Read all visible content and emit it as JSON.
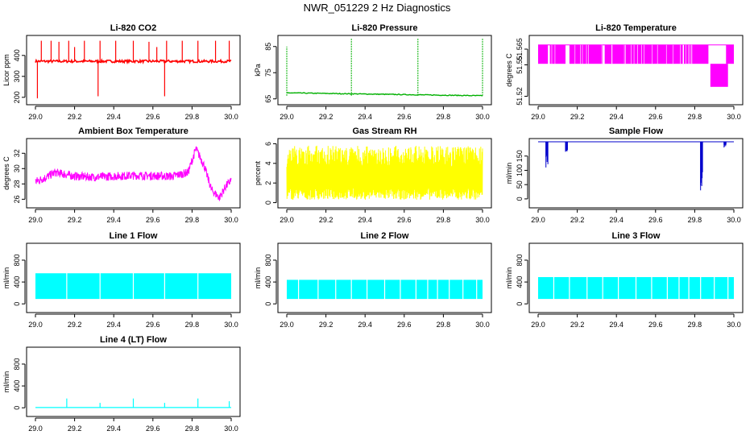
{
  "page": {
    "title": "NWR_051229  2 Hz Diagnostics"
  },
  "chart_data": [
    {
      "id": "co2",
      "type": "line",
      "title": "Li-820 CO2",
      "ylabel": "Licor ppm",
      "color": "#ff0000",
      "xlim": [
        29.0,
        30.0
      ],
      "x_ticks": [
        "29.0",
        "29.2",
        "29.4",
        "29.6",
        "29.8",
        "30.0"
      ],
      "ylim": [
        180,
        480
      ],
      "y_ticks": [
        {
          "v": 200,
          "label": "200"
        },
        {
          "v": 300,
          "label": "300"
        },
        {
          "v": 400,
          "label": "400"
        }
      ],
      "baseline": 372,
      "noise": 6,
      "spikes": [
        {
          "x": 29.01,
          "to": 195
        },
        {
          "x": 29.03,
          "to": 470
        },
        {
          "x": 29.08,
          "to": 470
        },
        {
          "x": 29.12,
          "to": 465
        },
        {
          "x": 29.17,
          "to": 470
        },
        {
          "x": 29.2,
          "to": 440
        },
        {
          "x": 29.25,
          "to": 470
        },
        {
          "x": 29.32,
          "to": 205
        },
        {
          "x": 29.33,
          "to": 470
        },
        {
          "x": 29.41,
          "to": 470
        },
        {
          "x": 29.5,
          "to": 470
        },
        {
          "x": 29.58,
          "to": 465
        },
        {
          "x": 29.62,
          "to": 440
        },
        {
          "x": 29.66,
          "to": 205
        },
        {
          "x": 29.67,
          "to": 470
        },
        {
          "x": 29.75,
          "to": 470
        },
        {
          "x": 29.83,
          "to": 470
        },
        {
          "x": 29.92,
          "to": 470
        },
        {
          "x": 29.99,
          "to": 470
        }
      ]
    },
    {
      "id": "pressure",
      "type": "line",
      "title": "Li-820 Pressure",
      "ylabel": "kPa",
      "color": "#00b000",
      "xlim": [
        29.0,
        30.0
      ],
      "x_ticks": [
        "29.0",
        "29.2",
        "29.4",
        "29.6",
        "29.8",
        "30.0"
      ],
      "ylim": [
        64,
        88
      ],
      "y_ticks": [
        {
          "v": 65,
          "label": "65"
        },
        {
          "v": 75,
          "label": "75"
        },
        {
          "v": 85,
          "label": "85"
        }
      ],
      "baseline_start": 67.3,
      "baseline_end": 66.2,
      "noise": 0.15,
      "spikes": [
        {
          "x": 29.0,
          "to": 85
        },
        {
          "x": 29.33,
          "to": 88
        },
        {
          "x": 29.67,
          "to": 88
        },
        {
          "x": 30.0,
          "to": 88
        }
      ]
    },
    {
      "id": "temperature",
      "type": "band",
      "title": "Li-820 Temperature",
      "ylabel": "degrees C",
      "color": "#ff00ff",
      "xlim": [
        29.0,
        30.0
      ],
      "x_ticks": [
        "29.0",
        "29.2",
        "29.4",
        "29.6",
        "29.8",
        "30.0"
      ],
      "ylim": [
        51.515,
        51.575
      ],
      "y_ticks": [
        {
          "v": 51.52,
          "label": "51.52"
        },
        {
          "v": 51.55,
          "label": "51.55"
        },
        {
          "v": 51.565,
          "label": "51.565"
        }
      ],
      "levels": [
        51.529,
        51.551,
        51.569
      ],
      "segments": [
        {
          "from": 29.0,
          "to": 29.05,
          "lo": 51.551,
          "hi": 51.569
        },
        {
          "from": 29.06,
          "to": 29.14,
          "lo": 51.551,
          "hi": 51.569
        },
        {
          "from": 29.16,
          "to": 29.33,
          "lo": 51.551,
          "hi": 51.569
        },
        {
          "from": 29.34,
          "to": 29.87,
          "lo": 51.551,
          "hi": 51.569
        },
        {
          "from": 29.88,
          "to": 29.97,
          "lo": 51.529,
          "hi": 51.551
        },
        {
          "from": 29.96,
          "to": 30.0,
          "lo": 51.551,
          "hi": 51.569
        }
      ]
    },
    {
      "id": "ambient",
      "type": "line",
      "title": "Ambient Box Temperature",
      "ylabel": "degrees C",
      "color": "#ff00ff",
      "xlim": [
        29.0,
        30.0
      ],
      "x_ticks": [
        "29.0",
        "29.2",
        "29.4",
        "29.6",
        "29.8",
        "30.0"
      ],
      "ylim": [
        25.3,
        33.5
      ],
      "y_ticks": [
        {
          "v": 26,
          "label": "26"
        },
        {
          "v": 28,
          "label": "28"
        },
        {
          "v": 30,
          "label": "30"
        },
        {
          "v": 32,
          "label": "32"
        }
      ],
      "profile": [
        [
          29.0,
          28.3
        ],
        [
          29.05,
          28.8
        ],
        [
          29.1,
          29.5
        ],
        [
          29.2,
          29.0
        ],
        [
          29.3,
          28.9
        ],
        [
          29.5,
          29.1
        ],
        [
          29.7,
          29.0
        ],
        [
          29.78,
          29.5
        ],
        [
          29.82,
          32.6
        ],
        [
          29.86,
          30.5
        ],
        [
          29.9,
          27.2
        ],
        [
          29.94,
          26.2
        ],
        [
          29.97,
          27.6
        ],
        [
          30.0,
          28.5
        ]
      ],
      "noise": 0.55
    },
    {
      "id": "rh",
      "type": "noise",
      "title": "Gas Stream RH",
      "ylabel": "percent",
      "color": "#ffff00",
      "xlim": [
        29.0,
        30.0
      ],
      "x_ticks": [
        "29.0",
        "29.2",
        "29.4",
        "29.6",
        "29.8",
        "30.0"
      ],
      "ylim": [
        -0.2,
        6.2
      ],
      "y_ticks": [
        {
          "v": 0,
          "label": "0"
        },
        {
          "v": 2,
          "label": "2"
        },
        {
          "v": 4,
          "label": "4"
        },
        {
          "v": 6,
          "label": "6"
        }
      ],
      "low": 0.3,
      "high": 5.8
    },
    {
      "id": "sampleflow",
      "type": "line",
      "title": "Sample Flow",
      "ylabel": "ml/min",
      "color": "#0000cc",
      "xlim": [
        29.0,
        30.0
      ],
      "x_ticks": [
        "29.0",
        "29.2",
        "29.4",
        "29.6",
        "29.8",
        "30.0"
      ],
      "ylim": [
        -20,
        200
      ],
      "y_ticks": [
        {
          "v": 0,
          "label": "0"
        },
        {
          "v": 50,
          "label": "50"
        },
        {
          "v": 100,
          "label": "100"
        },
        {
          "v": 150,
          "label": "150"
        }
      ],
      "baseline": 200,
      "dips": [
        {
          "from": 29.04,
          "to": 29.05,
          "min": 110
        },
        {
          "from": 29.14,
          "to": 29.15,
          "min": 165
        },
        {
          "from": 29.83,
          "to": 29.84,
          "min": 30
        },
        {
          "from": 29.95,
          "to": 29.96,
          "min": 180
        }
      ]
    },
    {
      "id": "line1",
      "type": "flow",
      "title": "Line 1 Flow",
      "ylabel": "ml/min",
      "color": "#00ffff",
      "xlim": [
        29.0,
        30.0
      ],
      "x_ticks": [
        "29.0",
        "29.2",
        "29.4",
        "29.6",
        "29.8",
        "30.0"
      ],
      "ylim": [
        -100,
        1050
      ],
      "y_ticks": [
        {
          "v": 0,
          "label": "0"
        },
        {
          "v": 400,
          "label": "400"
        },
        {
          "v": 800,
          "label": "800"
        }
      ],
      "low": 90,
      "high": 560,
      "gaps": [
        29.16,
        29.33,
        29.5,
        29.66,
        29.83
      ]
    },
    {
      "id": "line2",
      "type": "flow",
      "title": "Line 2 Flow",
      "ylabel": "ml/min",
      "color": "#00ffff",
      "xlim": [
        29.0,
        30.0
      ],
      "x_ticks": [
        "29.0",
        "29.2",
        "29.4",
        "29.6",
        "29.8",
        "30.0"
      ],
      "ylim": [
        -100,
        1050
      ],
      "y_ticks": [
        {
          "v": 0,
          "label": "0"
        },
        {
          "v": 400,
          "label": "400"
        },
        {
          "v": 800,
          "label": "800"
        }
      ],
      "low": 90,
      "high": 440,
      "gaps": [
        29.06,
        29.16,
        29.25,
        29.33,
        29.41,
        29.5,
        29.58,
        29.66,
        29.72,
        29.77,
        29.83,
        29.9,
        29.97
      ]
    },
    {
      "id": "line3",
      "type": "flow",
      "title": "Line 3 Flow",
      "ylabel": "ml/min",
      "color": "#00ffff",
      "xlim": [
        29.0,
        30.0
      ],
      "x_ticks": [
        "29.0",
        "29.2",
        "29.4",
        "29.6",
        "29.8",
        "30.0"
      ],
      "ylim": [
        -100,
        1050
      ],
      "y_ticks": [
        {
          "v": 0,
          "label": "0"
        },
        {
          "v": 400,
          "label": "400"
        },
        {
          "v": 800,
          "label": "800"
        }
      ],
      "low": 90,
      "high": 490,
      "gaps": [
        29.08,
        29.16,
        29.25,
        29.33,
        29.41,
        29.5,
        29.58,
        29.66,
        29.72,
        29.77,
        29.83,
        29.9,
        29.97
      ]
    },
    {
      "id": "line4",
      "type": "spikes",
      "title": "Line 4 (LT) Flow",
      "ylabel": "ml/min",
      "color": "#00ffff",
      "xlim": [
        29.0,
        30.0
      ],
      "x_ticks": [
        "29.0",
        "29.2",
        "29.4",
        "29.6",
        "29.8",
        "30.0"
      ],
      "ylim": [
        -100,
        1050
      ],
      "y_ticks": [
        {
          "v": 0,
          "label": "0"
        },
        {
          "v": 400,
          "label": "400"
        },
        {
          "v": 800,
          "label": "800"
        }
      ],
      "baseline": 5,
      "spikes": [
        {
          "x": 29.16,
          "to": 170
        },
        {
          "x": 29.33,
          "to": 90
        },
        {
          "x": 29.5,
          "to": 170
        },
        {
          "x": 29.66,
          "to": 90
        },
        {
          "x": 29.83,
          "to": 170
        },
        {
          "x": 29.99,
          "to": 120
        }
      ]
    }
  ]
}
